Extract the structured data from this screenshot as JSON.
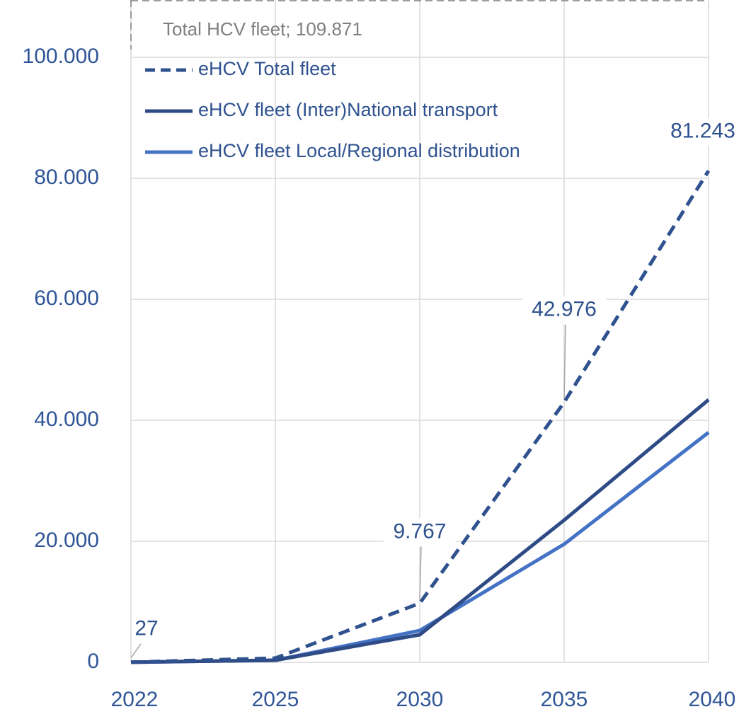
{
  "chart_data": {
    "type": "line",
    "categories": [
      "2022",
      "2025",
      "2030",
      "2035",
      "2040"
    ],
    "series": [
      {
        "name": "eHCV Total fleet",
        "color": "#2f528f",
        "dashed": true,
        "values": [
          27,
          700,
          9767,
          42976,
          81243
        ],
        "value_labels": [
          "27",
          null,
          "9.767",
          "42.976",
          "81.243"
        ]
      },
      {
        "name": "eHCV fleet (Inter)National transport",
        "color": "#2e4b86",
        "dashed": false,
        "values": [
          14,
          350,
          4560,
          23500,
          43400
        ]
      },
      {
        "name": "eHCV fleet Local/Regional distribution",
        "color": "#4472c4",
        "dashed": false,
        "values": [
          13,
          350,
          5260,
          19530,
          38000
        ]
      }
    ],
    "annotations": [
      {
        "text": "Total HCV fleet; 109.871",
        "value": 109871
      }
    ],
    "ylim": [
      0,
      110000
    ],
    "yticks": [
      0,
      {
        "value": 20000,
        "label": "20.000"
      },
      {
        "value": 40000,
        "label": "40.000"
      },
      {
        "value": 60000,
        "label": "60.000"
      },
      {
        "value": 80000,
        "label": "80.000"
      },
      {
        "value": 100000,
        "label": "100.000"
      }
    ],
    "grid": true,
    "legend": "upper left"
  }
}
